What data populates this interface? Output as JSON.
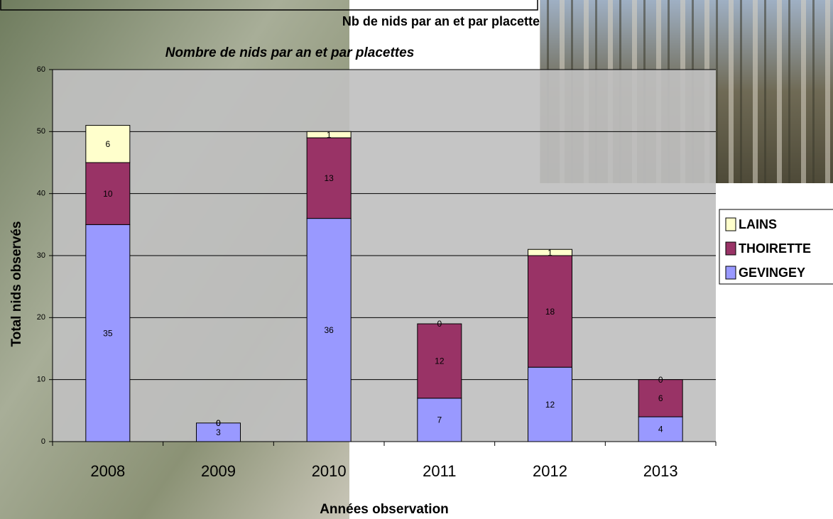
{
  "slide_title": "Nb de nids par an et par placette",
  "chart_data": {
    "type": "stacked-bar",
    "title": "Nombre de nids par an et par placettes",
    "x_label": "Années observation",
    "y_label": "Total nids observés",
    "categories": [
      "2008",
      "2009",
      "2010",
      "2011",
      "2012",
      "2013"
    ],
    "series": [
      {
        "name": "GEVINGEY",
        "color": "#9999ff",
        "values": [
          35,
          3,
          36,
          7,
          12,
          4
        ]
      },
      {
        "name": "THOIRETTE",
        "color": "#993366",
        "values": [
          10,
          0,
          13,
          12,
          18,
          6
        ]
      },
      {
        "name": "LAINS",
        "color": "#ffffcc",
        "values": [
          6,
          0,
          1,
          0,
          1,
          0
        ]
      }
    ],
    "ylim": [
      0,
      60
    ],
    "yticks": [
      0,
      10,
      20,
      30,
      40,
      50,
      60
    ],
    "grid": true,
    "legend": "right"
  }
}
